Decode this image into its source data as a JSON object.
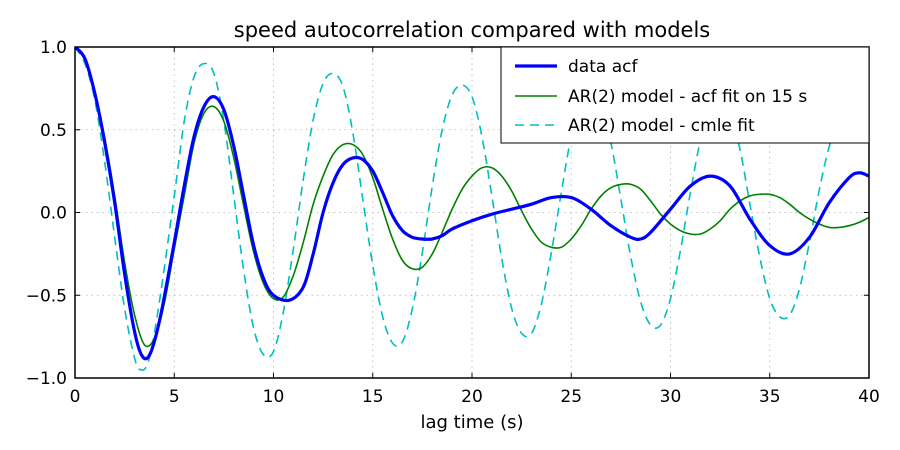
{
  "chart_data": {
    "type": "line",
    "title": "speed autocorrelation compared with models",
    "xlabel": "lag time (s)",
    "ylabel": "",
    "xlim": [
      0,
      40
    ],
    "ylim": [
      -1.0,
      1.0
    ],
    "x_ticks": [
      "0",
      "5",
      "10",
      "15",
      "20",
      "25",
      "30",
      "35",
      "40"
    ],
    "y_ticks": [
      "1.0",
      "0.5",
      "0.0",
      "−0.5",
      "−1.0"
    ],
    "grid": true,
    "legend_position": "top-right",
    "series": [
      {
        "name": "data acf",
        "color": "#0000ff",
        "style": "solid-thick",
        "points": [
          [
            0,
            1.0
          ],
          [
            0.5,
            0.93
          ],
          [
            1,
            0.72
          ],
          [
            1.5,
            0.42
          ],
          [
            2,
            0.06
          ],
          [
            2.5,
            -0.37
          ],
          [
            3,
            -0.72
          ],
          [
            3.4,
            -0.87
          ],
          [
            3.8,
            -0.85
          ],
          [
            4.3,
            -0.63
          ],
          [
            5,
            -0.18
          ],
          [
            5.5,
            0.16
          ],
          [
            6,
            0.46
          ],
          [
            6.5,
            0.64
          ],
          [
            7,
            0.7
          ],
          [
            7.5,
            0.62
          ],
          [
            8,
            0.4
          ],
          [
            8.5,
            0.1
          ],
          [
            9,
            -0.2
          ],
          [
            9.5,
            -0.4
          ],
          [
            10,
            -0.5
          ],
          [
            10.8,
            -0.53
          ],
          [
            11.5,
            -0.45
          ],
          [
            12,
            -0.25
          ],
          [
            12.5,
            0.0
          ],
          [
            13,
            0.18
          ],
          [
            13.5,
            0.29
          ],
          [
            14,
            0.33
          ],
          [
            14.5,
            0.32
          ],
          [
            15,
            0.25
          ],
          [
            15.5,
            0.12
          ],
          [
            16,
            -0.02
          ],
          [
            16.5,
            -0.11
          ],
          [
            17,
            -0.15
          ],
          [
            17.5,
            -0.16
          ],
          [
            18,
            -0.16
          ],
          [
            18.5,
            -0.14
          ],
          [
            19,
            -0.1
          ],
          [
            20,
            -0.05
          ],
          [
            21,
            -0.01
          ],
          [
            22,
            0.02
          ],
          [
            23,
            0.05
          ],
          [
            24,
            0.09
          ],
          [
            25,
            0.09
          ],
          [
            26,
            0.02
          ],
          [
            27,
            -0.08
          ],
          [
            28,
            -0.15
          ],
          [
            28.5,
            -0.16
          ],
          [
            29,
            -0.12
          ],
          [
            30,
            0.02
          ],
          [
            31,
            0.16
          ],
          [
            32,
            0.22
          ],
          [
            33,
            0.16
          ],
          [
            34,
            -0.04
          ],
          [
            35,
            -0.2
          ],
          [
            36,
            -0.25
          ],
          [
            37,
            -0.15
          ],
          [
            38,
            0.06
          ],
          [
            39,
            0.21
          ],
          [
            39.5,
            0.24
          ],
          [
            40,
            0.22
          ]
        ]
      },
      {
        "name": "AR(2) model - acf fit on 15 s",
        "color": "#008000",
        "style": "solid",
        "points": [
          [
            0,
            1.0
          ],
          [
            0.5,
            0.93
          ],
          [
            1,
            0.73
          ],
          [
            1.5,
            0.45
          ],
          [
            2,
            0.1
          ],
          [
            2.5,
            -0.3
          ],
          [
            3,
            -0.62
          ],
          [
            3.5,
            -0.8
          ],
          [
            4,
            -0.76
          ],
          [
            4.5,
            -0.55
          ],
          [
            5,
            -0.22
          ],
          [
            5.5,
            0.1
          ],
          [
            6,
            0.42
          ],
          [
            6.5,
            0.6
          ],
          [
            7,
            0.64
          ],
          [
            7.5,
            0.55
          ],
          [
            8,
            0.33
          ],
          [
            8.5,
            0.04
          ],
          [
            9,
            -0.24
          ],
          [
            9.5,
            -0.43
          ],
          [
            10,
            -0.52
          ],
          [
            10.5,
            -0.51
          ],
          [
            11,
            -0.38
          ],
          [
            11.5,
            -0.18
          ],
          [
            12,
            0.05
          ],
          [
            12.5,
            0.22
          ],
          [
            13,
            0.35
          ],
          [
            13.5,
            0.41
          ],
          [
            14,
            0.41
          ],
          [
            14.5,
            0.35
          ],
          [
            15,
            0.21
          ],
          [
            15.5,
            0.02
          ],
          [
            16,
            -0.16
          ],
          [
            16.5,
            -0.29
          ],
          [
            17,
            -0.34
          ],
          [
            17.5,
            -0.33
          ],
          [
            18,
            -0.25
          ],
          [
            18.5,
            -0.12
          ],
          [
            19,
            0.02
          ],
          [
            19.5,
            0.14
          ],
          [
            20,
            0.22
          ],
          [
            20.5,
            0.27
          ],
          [
            21,
            0.27
          ],
          [
            21.5,
            0.22
          ],
          [
            22,
            0.13
          ],
          [
            22.5,
            0.01
          ],
          [
            23,
            -0.1
          ],
          [
            23.5,
            -0.18
          ],
          [
            24,
            -0.21
          ],
          [
            24.5,
            -0.21
          ],
          [
            25,
            -0.16
          ],
          [
            25.5,
            -0.08
          ],
          [
            26,
            0.02
          ],
          [
            26.5,
            0.1
          ],
          [
            27,
            0.15
          ],
          [
            27.5,
            0.17
          ],
          [
            28,
            0.17
          ],
          [
            28.5,
            0.14
          ],
          [
            29,
            0.07
          ],
          [
            29.5,
            -0.01
          ],
          [
            30,
            -0.07
          ],
          [
            30.5,
            -0.11
          ],
          [
            31,
            -0.13
          ],
          [
            31.5,
            -0.13
          ],
          [
            32,
            -0.1
          ],
          [
            32.5,
            -0.05
          ],
          [
            33,
            0.02
          ],
          [
            33.5,
            0.07
          ],
          [
            34,
            0.1
          ],
          [
            34.5,
            0.11
          ],
          [
            35,
            0.11
          ],
          [
            35.5,
            0.09
          ],
          [
            36,
            0.05
          ],
          [
            36.5,
            0.0
          ],
          [
            37,
            -0.04
          ],
          [
            37.5,
            -0.07
          ],
          [
            38,
            -0.09
          ],
          [
            38.5,
            -0.09
          ],
          [
            39,
            -0.08
          ],
          [
            39.5,
            -0.06
          ],
          [
            40,
            -0.03
          ]
        ]
      },
      {
        "name": "AR(2) model - cmle fit",
        "color": "#00bfbf",
        "style": "dashed",
        "points": [
          [
            0,
            1.0
          ],
          [
            0.5,
            0.9
          ],
          [
            1,
            0.68
          ],
          [
            1.5,
            0.3
          ],
          [
            2,
            -0.15
          ],
          [
            2.5,
            -0.58
          ],
          [
            3,
            -0.88
          ],
          [
            3.3,
            -0.95
          ],
          [
            3.7,
            -0.9
          ],
          [
            4.2,
            -0.58
          ],
          [
            5,
            0.1
          ],
          [
            5.5,
            0.55
          ],
          [
            6,
            0.82
          ],
          [
            6.5,
            0.9
          ],
          [
            7,
            0.84
          ],
          [
            7.5,
            0.55
          ],
          [
            8,
            0.1
          ],
          [
            8.5,
            -0.35
          ],
          [
            9,
            -0.7
          ],
          [
            9.5,
            -0.86
          ],
          [
            10,
            -0.84
          ],
          [
            10.5,
            -0.6
          ],
          [
            11,
            -0.22
          ],
          [
            11.5,
            0.2
          ],
          [
            12,
            0.56
          ],
          [
            12.5,
            0.78
          ],
          [
            13,
            0.84
          ],
          [
            13.5,
            0.76
          ],
          [
            14,
            0.48
          ],
          [
            14.5,
            0.08
          ],
          [
            15,
            -0.32
          ],
          [
            15.5,
            -0.63
          ],
          [
            16,
            -0.79
          ],
          [
            16.5,
            -0.78
          ],
          [
            17,
            -0.58
          ],
          [
            17.5,
            -0.24
          ],
          [
            18,
            0.16
          ],
          [
            18.5,
            0.5
          ],
          [
            19,
            0.71
          ],
          [
            19.5,
            0.77
          ],
          [
            20,
            0.7
          ],
          [
            20.5,
            0.46
          ],
          [
            21,
            0.1
          ],
          [
            21.5,
            -0.28
          ],
          [
            22,
            -0.58
          ],
          [
            22.5,
            -0.73
          ],
          [
            23,
            -0.73
          ],
          [
            23.5,
            -0.55
          ],
          [
            24,
            -0.24
          ],
          [
            24.5,
            0.12
          ],
          [
            25,
            0.46
          ],
          [
            25.5,
            0.65
          ],
          [
            26,
            0.71
          ],
          [
            26.5,
            0.64
          ],
          [
            27,
            0.42
          ],
          [
            27.5,
            0.08
          ],
          [
            28,
            -0.27
          ],
          [
            28.5,
            -0.54
          ],
          [
            29,
            -0.68
          ],
          [
            29.5,
            -0.68
          ],
          [
            30,
            -0.52
          ],
          [
            30.5,
            -0.23
          ],
          [
            31,
            0.12
          ],
          [
            31.5,
            0.43
          ],
          [
            32,
            0.61
          ],
          [
            32.5,
            0.66
          ],
          [
            33,
            0.59
          ],
          [
            33.5,
            0.38
          ],
          [
            34,
            0.05
          ],
          [
            34.5,
            -0.27
          ],
          [
            35,
            -0.52
          ],
          [
            35.5,
            -0.63
          ],
          [
            36,
            -0.62
          ],
          [
            36.5,
            -0.46
          ],
          [
            37,
            -0.18
          ],
          [
            37.5,
            0.14
          ],
          [
            38,
            0.4
          ],
          [
            38.5,
            0.56
          ],
          [
            39,
            0.61
          ],
          [
            39.5,
            0.58
          ],
          [
            40,
            0.45
          ]
        ]
      }
    ]
  }
}
